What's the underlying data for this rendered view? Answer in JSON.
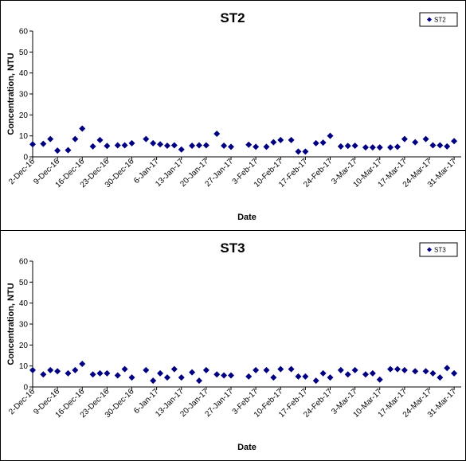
{
  "chart_data": [
    {
      "type": "scatter",
      "title": "ST2",
      "xlabel": "Date",
      "ylabel": "Concentration, NTU",
      "ylim": [
        0,
        60
      ],
      "yticks": [
        0,
        10,
        20,
        30,
        40,
        50,
        60
      ],
      "xlim": [
        "2016-12-02",
        "2017-04-02"
      ],
      "xtick_labels": [
        "2-Dec-16",
        "9-Dec-16",
        "16-Dec-16",
        "23-Dec-16",
        "30-Dec-16",
        "6-Jan-17",
        "13-Jan-17",
        "20-Jan-17",
        "27-Jan-17",
        "3-Feb-17",
        "10-Feb-17",
        "17-Feb-17",
        "24-Feb-17",
        "3-Mar-17",
        "10-Mar-17",
        "17-Mar-17",
        "24-Mar-17",
        "31-Mar-17"
      ],
      "grid": false,
      "legend_position": "top-right",
      "series": [
        {
          "name": "ST2",
          "color": "#000080",
          "marker": "diamond",
          "points": [
            [
              "2016-12-02",
              6.0
            ],
            [
              "2016-12-05",
              6.2
            ],
            [
              "2016-12-07",
              8.5
            ],
            [
              "2016-12-09",
              3.0
            ],
            [
              "2016-12-12",
              3.2
            ],
            [
              "2016-12-14",
              8.5
            ],
            [
              "2016-12-16",
              13.5
            ],
            [
              "2016-12-19",
              5.0
            ],
            [
              "2016-12-21",
              8.0
            ],
            [
              "2016-12-23",
              5.2
            ],
            [
              "2016-12-26",
              5.5
            ],
            [
              "2016-12-28",
              5.5
            ],
            [
              "2016-12-30",
              6.5
            ],
            [
              "2017-01-03",
              8.5
            ],
            [
              "2017-01-05",
              6.5
            ],
            [
              "2017-01-07",
              6.0
            ],
            [
              "2017-01-09",
              5.3
            ],
            [
              "2017-01-11",
              5.5
            ],
            [
              "2017-01-13",
              3.5
            ],
            [
              "2017-01-16",
              5.3
            ],
            [
              "2017-01-18",
              5.5
            ],
            [
              "2017-01-20",
              5.5
            ],
            [
              "2017-01-23",
              11.0
            ],
            [
              "2017-01-25",
              5.3
            ],
            [
              "2017-01-27",
              4.8
            ],
            [
              "2017-02-01",
              5.8
            ],
            [
              "2017-02-03",
              4.8
            ],
            [
              "2017-02-06",
              4.8
            ],
            [
              "2017-02-08",
              7.0
            ],
            [
              "2017-02-10",
              8.0
            ],
            [
              "2017-02-13",
              8.0
            ],
            [
              "2017-02-15",
              2.5
            ],
            [
              "2017-02-17",
              2.5
            ],
            [
              "2017-02-20",
              6.5
            ],
            [
              "2017-02-22",
              6.8
            ],
            [
              "2017-02-24",
              10.0
            ],
            [
              "2017-02-27",
              5.0
            ],
            [
              "2017-03-01",
              5.2
            ],
            [
              "2017-03-03",
              5.3
            ],
            [
              "2017-03-06",
              4.5
            ],
            [
              "2017-03-08",
              4.5
            ],
            [
              "2017-03-10",
              4.5
            ],
            [
              "2017-03-13",
              4.5
            ],
            [
              "2017-03-15",
              4.8
            ],
            [
              "2017-03-17",
              8.5
            ],
            [
              "2017-03-20",
              7.0
            ],
            [
              "2017-03-23",
              8.5
            ],
            [
              "2017-03-25",
              5.5
            ],
            [
              "2017-03-27",
              5.5
            ],
            [
              "2017-03-29",
              5.0
            ],
            [
              "2017-03-31",
              7.5
            ]
          ]
        }
      ]
    },
    {
      "type": "scatter",
      "title": "ST3",
      "xlabel": "Date",
      "ylabel": "Concentration, NTU",
      "ylim": [
        0,
        60
      ],
      "yticks": [
        0,
        10,
        20,
        30,
        40,
        50,
        60
      ],
      "xlim": [
        "2016-12-02",
        "2017-04-02"
      ],
      "xtick_labels": [
        "2-Dec-16",
        "9-Dec-16",
        "16-Dec-16",
        "23-Dec-16",
        "30-Dec-16",
        "6-Jan-17",
        "13-Jan-17",
        "20-Jan-17",
        "27-Jan-17",
        "3-Feb-17",
        "10-Feb-17",
        "17-Feb-17",
        "24-Feb-17",
        "3-Mar-17",
        "10-Mar-17",
        "17-Mar-17",
        "24-Mar-17",
        "31-Mar-17"
      ],
      "grid": false,
      "legend_position": "top-right",
      "series": [
        {
          "name": "ST3",
          "color": "#000080",
          "marker": "diamond",
          "points": [
            [
              "2016-12-02",
              8.0
            ],
            [
              "2016-12-05",
              6.0
            ],
            [
              "2016-12-07",
              8.0
            ],
            [
              "2016-12-09",
              7.5
            ],
            [
              "2016-12-12",
              6.5
            ],
            [
              "2016-12-14",
              8.0
            ],
            [
              "2016-12-16",
              11.0
            ],
            [
              "2016-12-19",
              6.0
            ],
            [
              "2016-12-21",
              6.5
            ],
            [
              "2016-12-23",
              6.5
            ],
            [
              "2016-12-26",
              5.5
            ],
            [
              "2016-12-28",
              8.5
            ],
            [
              "2016-12-30",
              4.5
            ],
            [
              "2017-01-03",
              8.0
            ],
            [
              "2017-01-05",
              3.0
            ],
            [
              "2017-01-07",
              6.5
            ],
            [
              "2017-01-09",
              4.5
            ],
            [
              "2017-01-11",
              8.5
            ],
            [
              "2017-01-13",
              4.5
            ],
            [
              "2017-01-16",
              7.0
            ],
            [
              "2017-01-18",
              3.0
            ],
            [
              "2017-01-20",
              8.0
            ],
            [
              "2017-01-23",
              6.0
            ],
            [
              "2017-01-25",
              5.5
            ],
            [
              "2017-01-27",
              5.5
            ],
            [
              "2017-02-01",
              5.0
            ],
            [
              "2017-02-03",
              8.0
            ],
            [
              "2017-02-06",
              8.0
            ],
            [
              "2017-02-08",
              4.5
            ],
            [
              "2017-02-10",
              8.5
            ],
            [
              "2017-02-13",
              8.5
            ],
            [
              "2017-02-15",
              5.0
            ],
            [
              "2017-02-17",
              5.0
            ],
            [
              "2017-02-20",
              3.0
            ],
            [
              "2017-02-22",
              6.5
            ],
            [
              "2017-02-24",
              4.5
            ],
            [
              "2017-02-27",
              8.0
            ],
            [
              "2017-03-01",
              6.0
            ],
            [
              "2017-03-03",
              8.0
            ],
            [
              "2017-03-06",
              6.0
            ],
            [
              "2017-03-08",
              6.5
            ],
            [
              "2017-03-10",
              3.5
            ],
            [
              "2017-03-13",
              8.5
            ],
            [
              "2017-03-15",
              8.5
            ],
            [
              "2017-03-17",
              8.0
            ],
            [
              "2017-03-20",
              7.5
            ],
            [
              "2017-03-23",
              7.5
            ],
            [
              "2017-03-25",
              6.5
            ],
            [
              "2017-03-27",
              4.5
            ],
            [
              "2017-03-29",
              9.0
            ],
            [
              "2017-03-31",
              6.5
            ]
          ]
        }
      ]
    }
  ]
}
